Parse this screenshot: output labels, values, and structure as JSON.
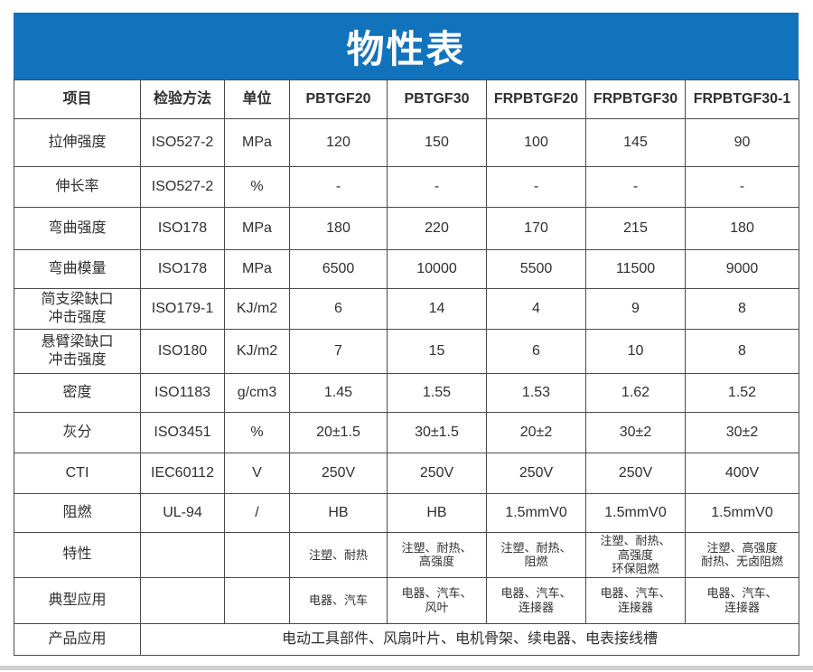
{
  "title": "物性表",
  "colors": {
    "banner_blue": "#1273bd",
    "border": "#4a4a4a",
    "text": "#2f2f2f"
  },
  "table": {
    "headers": [
      "项目",
      "检验方法",
      "单位",
      "PBTGF20",
      "PBTGF30",
      "FRPBTGF20",
      "FRPBTGF30",
      "FRPBTGF30-1"
    ],
    "rows": [
      {
        "item": "拉伸强度",
        "method": "ISO527-2",
        "unit": "MPa",
        "values": [
          "120",
          "150",
          "100",
          "145",
          "90"
        ]
      },
      {
        "item": "伸长率",
        "method": "ISO527-2",
        "unit": "%",
        "values": [
          "-",
          "-",
          "-",
          "-",
          "-"
        ]
      },
      {
        "item": "弯曲强度",
        "method": "ISO178",
        "unit": "MPa",
        "values": [
          "180",
          "220",
          "170",
          "215",
          "180"
        ]
      },
      {
        "item": "弯曲模量",
        "method": "ISO178",
        "unit": "MPa",
        "values": [
          "6500",
          "10000",
          "5500",
          "11500",
          "9000"
        ]
      },
      {
        "item": "简支梁缺口\n冲击强度",
        "method": "ISO179-1",
        "unit": "KJ/m2",
        "values": [
          "6",
          "14",
          "4",
          "9",
          "8"
        ]
      },
      {
        "item": "悬臂梁缺口\n冲击强度",
        "method": "ISO180",
        "unit": "KJ/m2",
        "values": [
          "7",
          "15",
          "6",
          "10",
          "8"
        ]
      },
      {
        "item": "密度",
        "method": "ISO1183",
        "unit": "g/cm3",
        "values": [
          "1.45",
          "1.55",
          "1.53",
          "1.62",
          "1.52"
        ]
      },
      {
        "item": "灰分",
        "method": "ISO3451",
        "unit": "%",
        "values": [
          "20±1.5",
          "30±1.5",
          "20±2",
          "30±2",
          "30±2"
        ]
      },
      {
        "item": "CTI",
        "method": "IEC60112",
        "unit": "V",
        "values": [
          "250V",
          "250V",
          "250V",
          "250V",
          "400V"
        ]
      },
      {
        "item": "阻燃",
        "method": "UL-94",
        "unit": "/",
        "values": [
          "HB",
          "HB",
          "1.5mmV0",
          "1.5mmV0",
          "1.5mmV0"
        ]
      },
      {
        "item": "特性",
        "method": "",
        "unit": "",
        "small_text": true,
        "values": [
          "注塑、耐热",
          "注塑、耐热、\n高强度",
          "注塑、耐热、\n阻燃",
          "注塑、耐热、\n高强度\n环保阻燃",
          "注塑、高强度\n耐热、无卤阻燃"
        ]
      },
      {
        "item": "典型应用",
        "method": "",
        "unit": "",
        "small_text": true,
        "values": [
          "电器、汽车",
          "电器、汽车、\n风叶",
          "电器、汽车、\n连接器",
          "电器、汽车、\n连接器",
          "电器、汽车、\n连接器"
        ]
      }
    ],
    "footer": {
      "item": "产品应用",
      "value": "电动工具部件、风扇叶片、电机骨架、续电器、电表接线槽"
    }
  }
}
